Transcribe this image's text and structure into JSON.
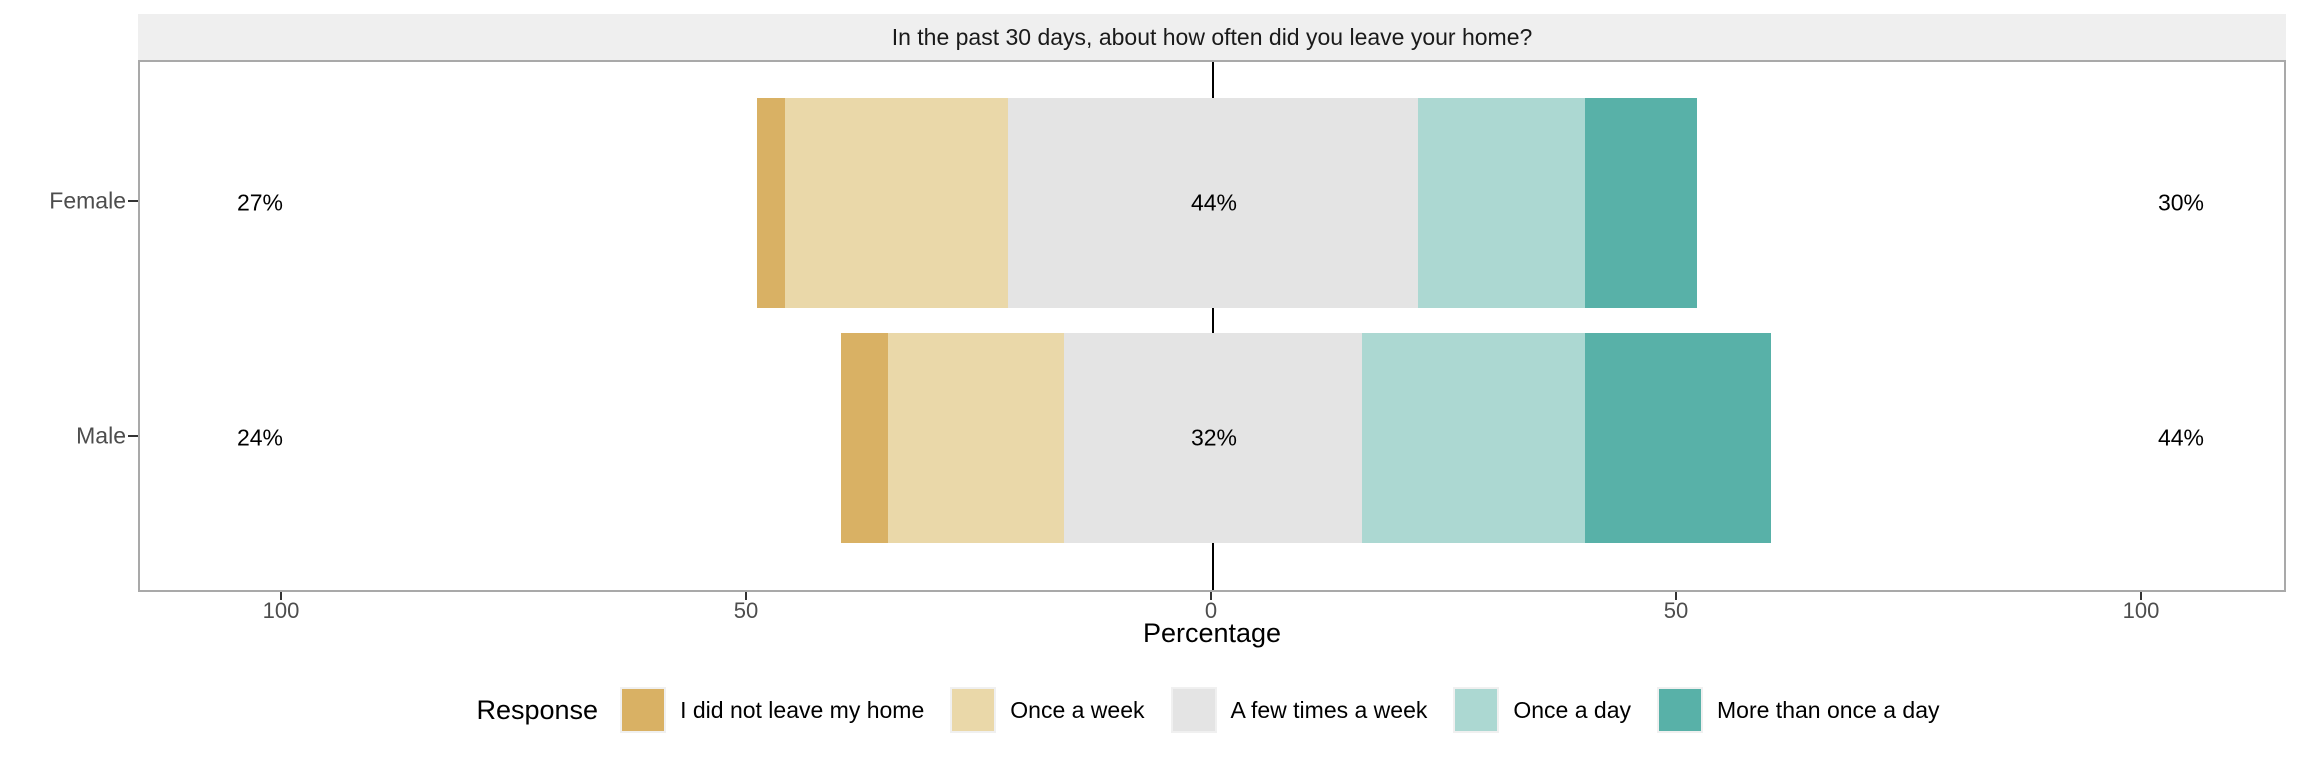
{
  "strip": {
    "title": "In the past 30 days, about how often did you leave your home?"
  },
  "x_axis": {
    "title": "Percentage",
    "tick_labels": [
      "100",
      "50",
      "0",
      "50",
      "100"
    ],
    "tick_values": [
      -100,
      -50,
      0,
      50,
      100
    ]
  },
  "y_axis": {
    "categories": [
      "Female",
      "Male"
    ]
  },
  "legend": {
    "title": "Response",
    "items": [
      {
        "label": "I did not leave my home",
        "color": "#D9B164"
      },
      {
        "label": "Once a week",
        "color": "#EAD8A9"
      },
      {
        "label": "A few times a week",
        "color": "#E4E4E4"
      },
      {
        "label": "Once a day",
        "color": "#ACD8D2"
      },
      {
        "label": "More than once a day",
        "color": "#58B1A8"
      }
    ]
  },
  "colors": {
    "strip_background": "#EFEFEF",
    "panel_border": "#A9A9A9",
    "zero_line": "#000000",
    "axis_text": "#4D4D4D",
    "tick_mark": "#333333"
  },
  "chart_data": {
    "type": "bar",
    "subtype": "diverging_stacked_likert",
    "title": "In the past 30 days, about how often did you leave your home?",
    "categories": [
      "Female",
      "Male"
    ],
    "response_levels": [
      "I did not leave my home",
      "Once a week",
      "A few times a week",
      "Once a day",
      "More than once a day"
    ],
    "series": [
      {
        "name": "I did not leave my home",
        "values": [
          3,
          5
        ]
      },
      {
        "name": "Once a week",
        "values": [
          24,
          19
        ]
      },
      {
        "name": "A few times a week",
        "values": [
          44,
          32
        ]
      },
      {
        "name": "Once a day",
        "values": [
          18,
          24
        ]
      },
      {
        "name": "More than once a day",
        "values": [
          12,
          20
        ]
      }
    ],
    "totals": {
      "negative_side_pct": [
        27,
        24
      ],
      "neutral_pct": [
        44,
        32
      ],
      "positive_side_pct": [
        30,
        44
      ]
    },
    "displayed_labels": {
      "Female": {
        "left": "27%",
        "center": "44%",
        "right": "30%"
      },
      "Male": {
        "left": "24%",
        "center": "32%",
        "right": "44%"
      }
    },
    "neutral_centered_on_zero": true,
    "xlabel": "Percentage",
    "x_ticks": [
      -100,
      -50,
      0,
      50,
      100
    ],
    "xlim": [
      -115,
      115
    ],
    "grid": false,
    "legend_position": "bottom"
  }
}
